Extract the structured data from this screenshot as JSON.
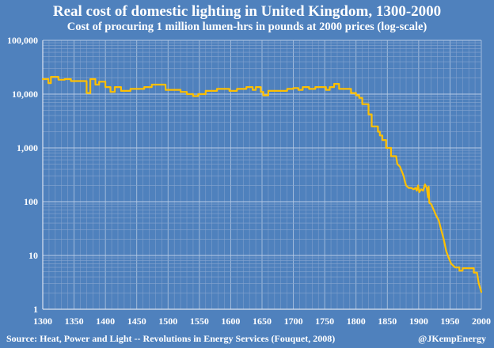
{
  "chart_data": {
    "type": "line",
    "title": "Real cost of domestic lighting in United Kingdom, 1300-2000",
    "subtitle": "Cost of procuring 1 million lumen-hrs in pounds at 2000 prices (log-scale)",
    "xlabel": "",
    "ylabel": "",
    "y_scale": "log",
    "xlim": [
      1300,
      2000
    ],
    "ylim": [
      1,
      100000
    ],
    "x_ticks": [
      "1300",
      "1350",
      "1400",
      "1450",
      "1500",
      "1550",
      "1600",
      "1650",
      "1700",
      "1750",
      "1800",
      "1850",
      "1900",
      "1950",
      "2000"
    ],
    "y_ticks": [
      "1",
      "10",
      "100",
      "1,000",
      "10,000",
      "100,000"
    ],
    "y_tick_values": [
      1,
      10,
      100,
      1000,
      10000,
      100000
    ],
    "grid": true,
    "line_color": "#ffc000",
    "series": [
      {
        "name": "Real cost of domestic lighting",
        "points": [
          [
            1300,
            19000
          ],
          [
            1309,
            19000
          ],
          [
            1309,
            16000
          ],
          [
            1313,
            16000
          ],
          [
            1313,
            21000
          ],
          [
            1325,
            21000
          ],
          [
            1325,
            18500
          ],
          [
            1335,
            18500
          ],
          [
            1335,
            19000
          ],
          [
            1345,
            19000
          ],
          [
            1345,
            17500
          ],
          [
            1370,
            17500
          ],
          [
            1370,
            10500
          ],
          [
            1376,
            10500
          ],
          [
            1376,
            19000
          ],
          [
            1384,
            19000
          ],
          [
            1384,
            15000
          ],
          [
            1390,
            15000
          ],
          [
            1390,
            17000
          ],
          [
            1400,
            17000
          ],
          [
            1400,
            13500
          ],
          [
            1408,
            13500
          ],
          [
            1408,
            11000
          ],
          [
            1415,
            11000
          ],
          [
            1415,
            13500
          ],
          [
            1425,
            13500
          ],
          [
            1425,
            11500
          ],
          [
            1440,
            11500
          ],
          [
            1440,
            12500
          ],
          [
            1462,
            12500
          ],
          [
            1462,
            13500
          ],
          [
            1474,
            13500
          ],
          [
            1474,
            15000
          ],
          [
            1496,
            15000
          ],
          [
            1496,
            12000
          ],
          [
            1520,
            12000
          ],
          [
            1520,
            11000
          ],
          [
            1530,
            11000
          ],
          [
            1530,
            10000
          ],
          [
            1540,
            10000
          ],
          [
            1540,
            9200
          ],
          [
            1548,
            9200
          ],
          [
            1548,
            10000
          ],
          [
            1560,
            10000
          ],
          [
            1560,
            11500
          ],
          [
            1578,
            11500
          ],
          [
            1578,
            12500
          ],
          [
            1598,
            12500
          ],
          [
            1598,
            11500
          ],
          [
            1610,
            11500
          ],
          [
            1610,
            12500
          ],
          [
            1625,
            12500
          ],
          [
            1625,
            13500
          ],
          [
            1635,
            13500
          ],
          [
            1635,
            12000
          ],
          [
            1640,
            12000
          ],
          [
            1640,
            13500
          ],
          [
            1648,
            13500
          ],
          [
            1648,
            11000
          ],
          [
            1652,
            11000
          ],
          [
            1652,
            9500
          ],
          [
            1660,
            9500
          ],
          [
            1660,
            11500
          ],
          [
            1690,
            11500
          ],
          [
            1690,
            12500
          ],
          [
            1700,
            12500
          ],
          [
            1700,
            13000
          ],
          [
            1708,
            13000
          ],
          [
            1708,
            12000
          ],
          [
            1715,
            12000
          ],
          [
            1715,
            13500
          ],
          [
            1725,
            13500
          ],
          [
            1725,
            12500
          ],
          [
            1735,
            12500
          ],
          [
            1735,
            13500
          ],
          [
            1752,
            13500
          ],
          [
            1752,
            12000
          ],
          [
            1758,
            12000
          ],
          [
            1758,
            13500
          ],
          [
            1765,
            13500
          ],
          [
            1765,
            15500
          ],
          [
            1773,
            15500
          ],
          [
            1773,
            12500
          ],
          [
            1792,
            12500
          ],
          [
            1792,
            10500
          ],
          [
            1800,
            10500
          ],
          [
            1800,
            9500
          ],
          [
            1805,
            9500
          ],
          [
            1805,
            8500
          ],
          [
            1810,
            8500
          ],
          [
            1810,
            6500
          ],
          [
            1820,
            6500
          ],
          [
            1820,
            4200
          ],
          [
            1825,
            4200
          ],
          [
            1825,
            2500
          ],
          [
            1835,
            2500
          ],
          [
            1835,
            2000
          ],
          [
            1838,
            2000
          ],
          [
            1838,
            1700
          ],
          [
            1842,
            1700
          ],
          [
            1842,
            1400
          ],
          [
            1848,
            1400
          ],
          [
            1848,
            1000
          ],
          [
            1856,
            1000
          ],
          [
            1856,
            700
          ],
          [
            1864,
            700
          ],
          [
            1866,
            500
          ],
          [
            1870,
            450
          ],
          [
            1873,
            370
          ],
          [
            1876,
            300
          ],
          [
            1878,
            240
          ],
          [
            1880,
            200
          ],
          [
            1884,
            180
          ],
          [
            1888,
            180
          ],
          [
            1892,
            170
          ],
          [
            1895,
            180
          ],
          [
            1897,
            160
          ],
          [
            1899,
            200
          ],
          [
            1901,
            150
          ],
          [
            1904,
            170
          ],
          [
            1907,
            160
          ],
          [
            1910,
            210
          ],
          [
            1913,
            180
          ],
          [
            1915,
            120
          ],
          [
            1916,
            190
          ],
          [
            1917,
            95
          ],
          [
            1920,
            90
          ],
          [
            1924,
            70
          ],
          [
            1928,
            55
          ],
          [
            1932,
            45
          ],
          [
            1936,
            30
          ],
          [
            1940,
            20
          ],
          [
            1944,
            12
          ],
          [
            1948,
            9
          ],
          [
            1952,
            7
          ],
          [
            1958,
            6
          ],
          [
            1965,
            6
          ],
          [
            1965,
            5.2
          ],
          [
            1970,
            5.2
          ],
          [
            1970,
            5.8
          ],
          [
            1988,
            5.8
          ],
          [
            1988,
            4.8
          ],
          [
            1993,
            4.8
          ],
          [
            1996,
            3
          ],
          [
            2000,
            2.1
          ]
        ]
      }
    ]
  },
  "footer": {
    "source": "Source: Heat, Power and Light -- Revolutions in Energy Services (Fouquet, 2008)",
    "credit": "@JKempEnergy"
  }
}
